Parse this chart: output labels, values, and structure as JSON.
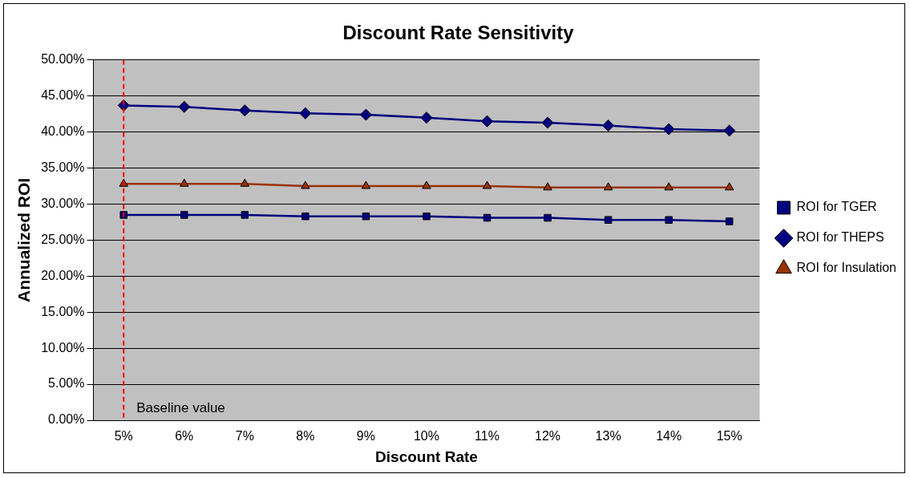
{
  "chart_data": {
    "type": "line",
    "title": "Discount Rate Sensitivity",
    "xlabel": "Discount Rate",
    "ylabel": "Annualized ROI",
    "categories": [
      "5%",
      "6%",
      "7%",
      "8%",
      "9%",
      "10%",
      "11%",
      "12%",
      "13%",
      "14%",
      "15%"
    ],
    "series": [
      {
        "name": "ROI for TGER",
        "color": "#000080",
        "marker": "square",
        "values": [
          28.5,
          28.5,
          28.5,
          28.3,
          28.3,
          28.3,
          28.1,
          28.1,
          27.8,
          27.8,
          27.6
        ]
      },
      {
        "name": "ROI for THEPS",
        "color": "#000080",
        "marker": "diamond",
        "values": [
          43.7,
          43.5,
          43.0,
          42.6,
          42.4,
          42.0,
          41.5,
          41.3,
          40.9,
          40.4,
          40.2
        ]
      },
      {
        "name": "ROI for Insulation",
        "color": "#993300",
        "marker": "triangle",
        "values": [
          32.8,
          32.8,
          32.8,
          32.5,
          32.5,
          32.5,
          32.5,
          32.3,
          32.3,
          32.3,
          32.3
        ]
      }
    ],
    "ylim": [
      0,
      50
    ],
    "yticks": [
      {
        "value": 0,
        "label": "0.00%"
      },
      {
        "value": 5,
        "label": "5.00%"
      },
      {
        "value": 10,
        "label": "10.00%"
      },
      {
        "value": 15,
        "label": "15.00%"
      },
      {
        "value": 20,
        "label": "20.00%"
      },
      {
        "value": 25,
        "label": "25.00%"
      },
      {
        "value": 30,
        "label": "30.00%"
      },
      {
        "value": 35,
        "label": "35.00%"
      },
      {
        "value": 40,
        "label": "40.00%"
      },
      {
        "value": 45,
        "label": "45.00%"
      },
      {
        "value": 50,
        "label": "50.00%"
      }
    ],
    "grid": "y",
    "legend": "right",
    "ref_lines": [
      {
        "axis": "x",
        "value": "5%",
        "label": "Baseline value",
        "color": "#ff0000",
        "line_style": "dashed"
      }
    ]
  }
}
